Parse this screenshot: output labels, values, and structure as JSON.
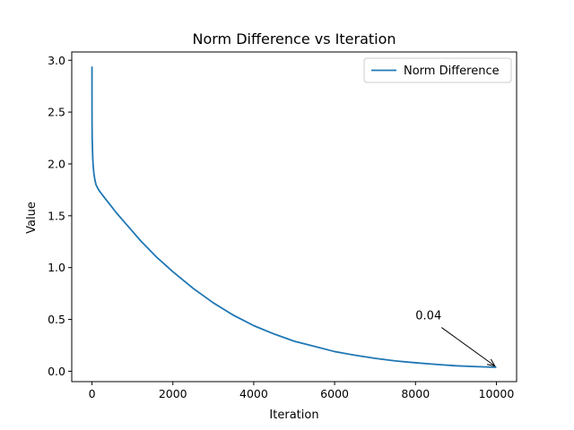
{
  "chart_data": {
    "type": "line",
    "title": "Norm Difference vs Iteration",
    "xlabel": "Iteration",
    "ylabel": "Value",
    "xlim": [
      -500,
      10500
    ],
    "ylim": [
      -0.1,
      3.08
    ],
    "xticks": [
      0,
      2000,
      4000,
      6000,
      8000,
      10000
    ],
    "yticks": [
      0.0,
      0.5,
      1.0,
      1.5,
      2.0,
      2.5,
      3.0
    ],
    "xtick_labels": [
      "0",
      "2000",
      "4000",
      "6000",
      "8000",
      "10000"
    ],
    "ytick_labels": [
      "0.0",
      "0.5",
      "1.0",
      "1.5",
      "2.0",
      "2.5",
      "3.0"
    ],
    "legend_position": "upper-right",
    "color": "#1f77b4",
    "series": [
      {
        "name": "Norm Difference",
        "x": [
          0,
          1,
          2,
          5,
          10,
          20,
          30,
          50,
          75,
          100,
          150,
          200,
          300,
          400,
          500,
          600,
          800,
          1000,
          1200,
          1400,
          1600,
          1800,
          2000,
          2250,
          2500,
          2750,
          3000,
          3250,
          3500,
          3750,
          4000,
          4500,
          5000,
          5500,
          6000,
          6500,
          7000,
          7500,
          8000,
          8500,
          9000,
          9500,
          10000
        ],
        "y": [
          2.94,
          2.55,
          2.38,
          2.26,
          2.17,
          2.05,
          1.98,
          1.9,
          1.84,
          1.8,
          1.76,
          1.73,
          1.68,
          1.63,
          1.58,
          1.53,
          1.44,
          1.35,
          1.26,
          1.18,
          1.1,
          1.03,
          0.96,
          0.88,
          0.8,
          0.73,
          0.66,
          0.6,
          0.54,
          0.49,
          0.44,
          0.36,
          0.29,
          0.24,
          0.19,
          0.155,
          0.125,
          0.1,
          0.082,
          0.066,
          0.053,
          0.045,
          0.038
        ]
      }
    ],
    "annotation": {
      "text": "0.04",
      "point": [
        10000,
        0.04
      ],
      "text_pos": [
        8000,
        0.5
      ]
    }
  }
}
